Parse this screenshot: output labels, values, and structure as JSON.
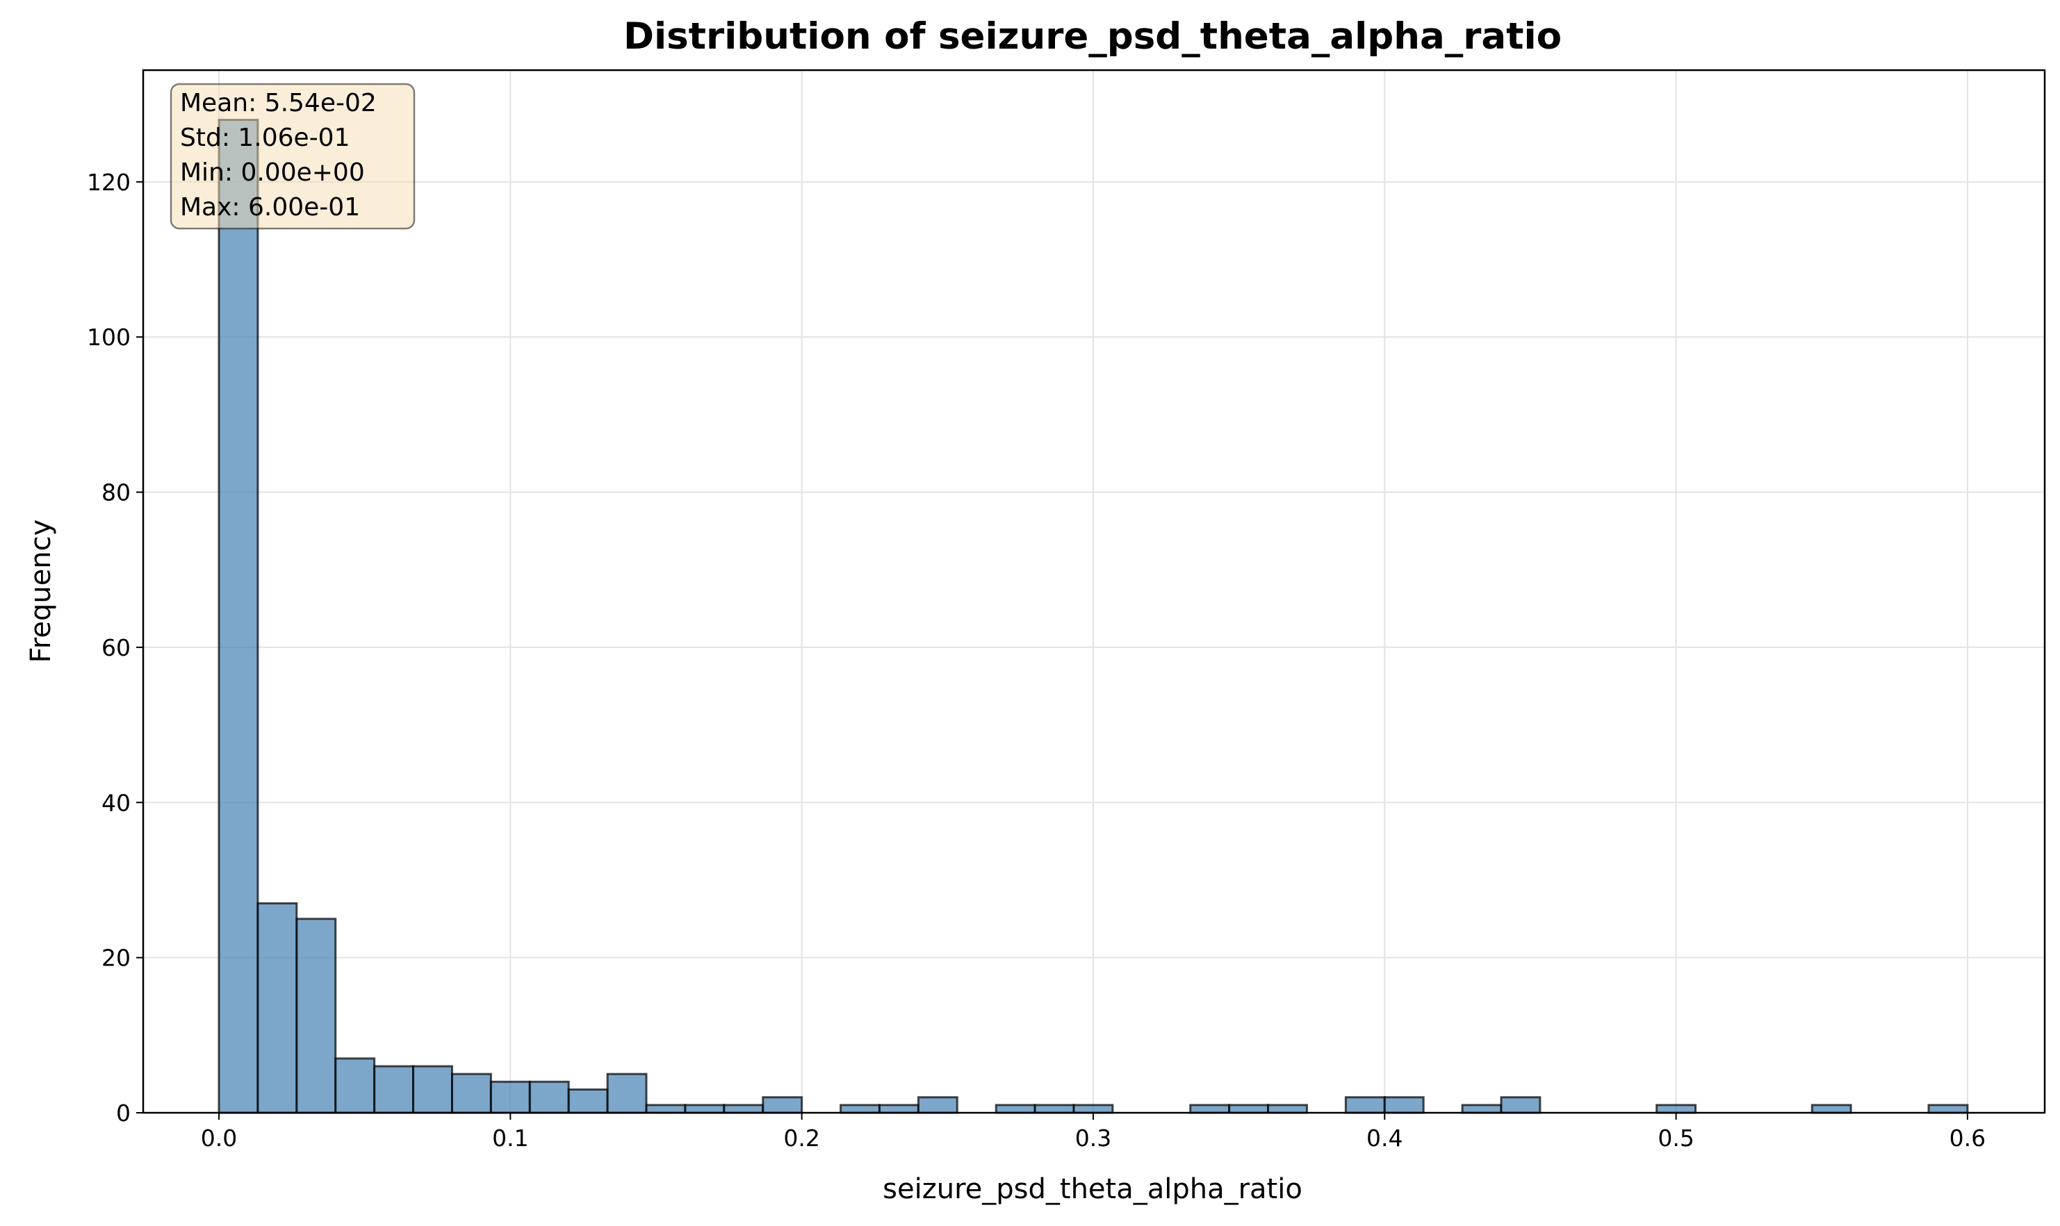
{
  "chart_data": {
    "type": "bar",
    "title": "Distribution of seizure_psd_theta_alpha_ratio",
    "xlabel": "seizure_psd_theta_alpha_ratio",
    "ylabel": "Frequency",
    "xlim": [
      -0.026,
      0.6265
    ],
    "ylim": [
      0,
      134.4
    ],
    "xticks": [
      0.0,
      0.1,
      0.2,
      0.3,
      0.4,
      0.5,
      0.6
    ],
    "xtick_labels": [
      "0.0",
      "0.1",
      "0.2",
      "0.3",
      "0.4",
      "0.5",
      "0.6"
    ],
    "yticks": [
      0,
      20,
      40,
      60,
      80,
      100,
      120
    ],
    "ytick_labels": [
      "0",
      "20",
      "40",
      "60",
      "80",
      "100",
      "120"
    ],
    "grid": true,
    "bin_start": 0.0,
    "bin_end": 0.6,
    "bin_count": 45,
    "values": [
      128,
      27,
      25,
      7,
      6,
      6,
      5,
      4,
      4,
      3,
      5,
      1,
      1,
      1,
      2,
      0,
      1,
      1,
      2,
      0,
      1,
      1,
      1,
      0,
      0,
      1,
      1,
      1,
      0,
      2,
      2,
      0,
      1,
      2,
      0,
      0,
      0,
      1,
      0,
      0,
      0,
      1,
      0,
      0,
      1
    ],
    "bar_color": "#4682b4",
    "edge_color": "#000000",
    "stats_box": {
      "lines": [
        "Mean: 5.54e-02",
        "Std: 1.06e-01",
        "Min: 0.00e+00",
        "Max: 6.00e-01"
      ],
      "background": "#f5deb3",
      "placement": "top-left"
    }
  }
}
